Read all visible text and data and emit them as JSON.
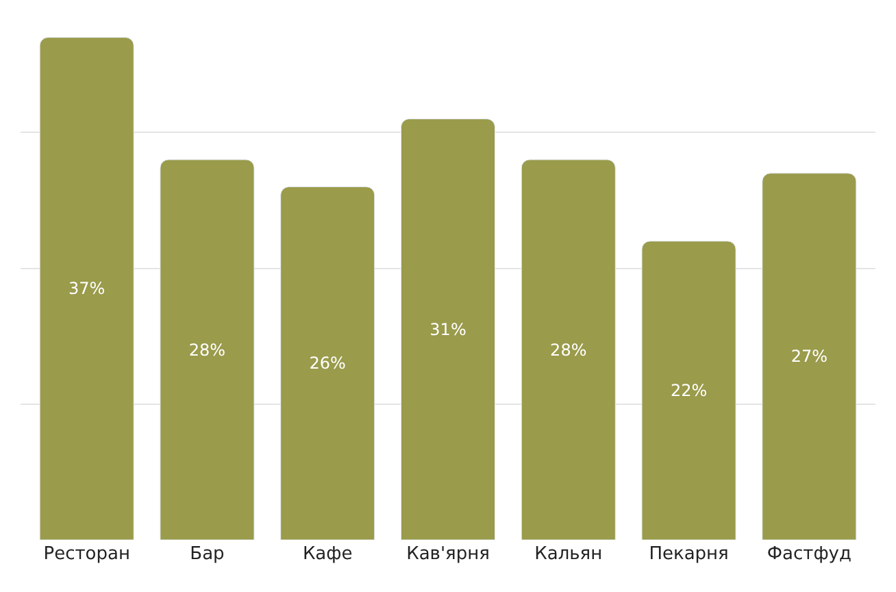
{
  "chart_data": {
    "type": "bar",
    "categories": [
      "Ресторан",
      "Бар",
      "Кафе",
      "Кав'ярня",
      "Кальян",
      "Пекарня",
      "Фастфуд"
    ],
    "values": [
      37,
      28,
      26,
      31,
      28,
      22,
      27
    ],
    "value_labels": [
      "37%",
      "28%",
      "26%",
      "31%",
      "28%",
      "22%",
      "27%"
    ],
    "color": "#9a9b4b",
    "grid": "y",
    "tick_labels": "x"
  }
}
